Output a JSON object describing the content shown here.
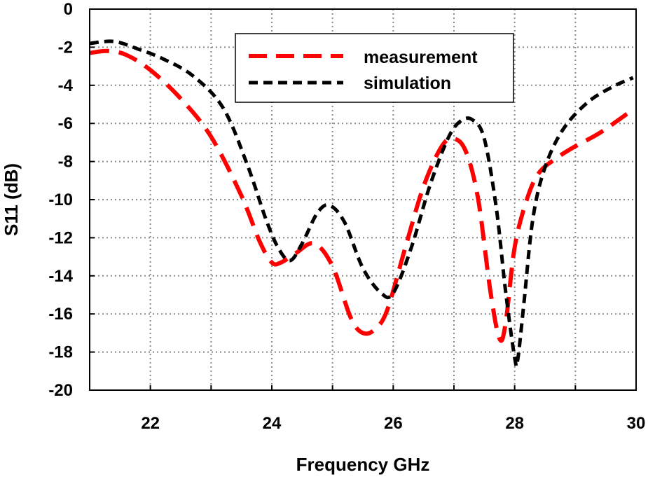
{
  "chart_data": {
    "type": "line",
    "xlabel": "Frequency GHz",
    "ylabel": "S11 (dB)",
    "xlim": [
      21,
      30
    ],
    "ylim": [
      -20,
      0
    ],
    "xticks": [
      22,
      24,
      26,
      28,
      30
    ],
    "yticks": [
      0,
      -2,
      -4,
      -6,
      -8,
      -10,
      -12,
      -14,
      -16,
      -18,
      -20
    ],
    "grid": true,
    "legend_position": "top-center",
    "series": [
      {
        "name": "measurement",
        "color": "#ff0000",
        "style": "long-dash",
        "x": [
          21.0,
          21.3,
          21.6,
          22.0,
          22.5,
          23.0,
          23.5,
          23.8,
          24.0,
          24.15,
          24.4,
          24.7,
          25.0,
          25.3,
          25.5,
          25.7,
          25.9,
          26.2,
          26.5,
          26.8,
          27.0,
          27.2,
          27.4,
          27.6,
          27.75,
          27.85,
          28.0,
          28.2,
          28.4,
          28.7,
          29.0,
          29.4,
          29.85
        ],
        "y": [
          -2.3,
          -2.2,
          -2.4,
          -3.2,
          -4.7,
          -6.7,
          -9.8,
          -12.2,
          -13.3,
          -13.3,
          -12.8,
          -12.3,
          -13.5,
          -16.2,
          -17.0,
          -16.8,
          -15.8,
          -12.5,
          -9.3,
          -7.2,
          -6.8,
          -7.5,
          -10.0,
          -14.8,
          -17.3,
          -16.5,
          -12.5,
          -10.0,
          -8.6,
          -7.8,
          -7.2,
          -6.5,
          -5.5
        ]
      },
      {
        "name": "simulation",
        "color": "#000000",
        "style": "short-dash",
        "x": [
          21.0,
          21.4,
          21.8,
          22.2,
          22.7,
          23.2,
          23.6,
          23.9,
          24.1,
          24.3,
          24.5,
          24.75,
          24.95,
          25.2,
          25.5,
          25.8,
          26.0,
          26.3,
          26.6,
          26.9,
          27.1,
          27.3,
          27.5,
          27.7,
          27.85,
          28.0,
          28.05,
          28.15,
          28.3,
          28.5,
          28.8,
          29.2,
          29.6,
          29.95
        ],
        "y": [
          -1.8,
          -1.7,
          -2.1,
          -2.6,
          -3.5,
          -5.2,
          -8.2,
          -11.0,
          -12.5,
          -13.2,
          -12.3,
          -10.7,
          -10.3,
          -11.2,
          -13.6,
          -14.9,
          -14.9,
          -12.5,
          -9.3,
          -6.8,
          -5.9,
          -5.8,
          -6.8,
          -10.5,
          -14.8,
          -18.3,
          -18.4,
          -15.5,
          -11.0,
          -8.3,
          -6.3,
          -4.9,
          -4.1,
          -3.6
        ]
      }
    ]
  }
}
